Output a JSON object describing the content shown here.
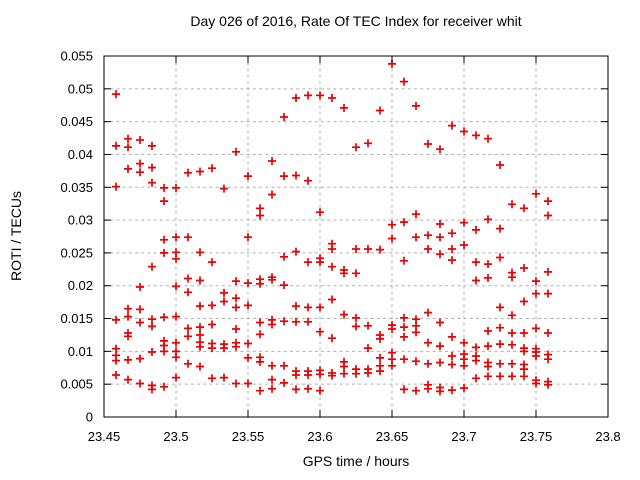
{
  "window": {
    "background": "#ffffff"
  },
  "chart_data": {
    "type": "scatter",
    "title": "Day 026 of 2016, Rate Of TEC Index for receiver whit",
    "xlabel": "GPS time / hours",
    "ylabel": "ROTI / TECUs",
    "xlim": [
      23.45,
      23.8
    ],
    "ylim": [
      0,
      0.055
    ],
    "xticks": [
      23.45,
      23.5,
      23.55,
      23.6,
      23.65,
      23.7,
      23.75,
      23.8
    ],
    "xtick_labels": [
      "23.45",
      "23.5",
      "23.55",
      "23.6",
      "23.65",
      "23.7",
      "23.75",
      "23.8"
    ],
    "yticks": [
      0,
      0.005,
      0.01,
      0.015,
      0.02,
      0.025,
      0.03,
      0.035,
      0.04,
      0.045,
      0.05,
      0.055
    ],
    "ytick_labels": [
      "0",
      "0.005",
      "0.01",
      "0.015",
      "0.02",
      "0.025",
      "0.03",
      "0.035",
      "0.04",
      "0.045",
      "0.05",
      "0.055"
    ],
    "grid": true,
    "legend": "none",
    "marker": "plus",
    "colors": {
      "marker": "#ee0000",
      "grid": "#b0b0b0",
      "axis": "#000000",
      "text": "#000000"
    },
    "points": [
      [
        23.4583,
        0.0492
      ],
      [
        23.4583,
        0.0413
      ],
      [
        23.4583,
        0.0351
      ],
      [
        23.4583,
        0.0148
      ],
      [
        23.4583,
        0.0104
      ],
      [
        23.4583,
        0.0094
      ],
      [
        23.4583,
        0.0086
      ],
      [
        23.4583,
        0.0064
      ],
      [
        23.4667,
        0.0424
      ],
      [
        23.4667,
        0.0411
      ],
      [
        23.4667,
        0.0378
      ],
      [
        23.4667,
        0.0165
      ],
      [
        23.4667,
        0.0153
      ],
      [
        23.4667,
        0.0128
      ],
      [
        23.4667,
        0.0123
      ],
      [
        23.4667,
        0.0087
      ],
      [
        23.4667,
        0.0057
      ],
      [
        23.475,
        0.0422
      ],
      [
        23.475,
        0.0386
      ],
      [
        23.475,
        0.0373
      ],
      [
        23.475,
        0.0198
      ],
      [
        23.475,
        0.0164
      ],
      [
        23.475,
        0.0144
      ],
      [
        23.475,
        0.0089
      ],
      [
        23.475,
        0.0051
      ],
      [
        23.4833,
        0.0413
      ],
      [
        23.4833,
        0.038
      ],
      [
        23.4833,
        0.0357
      ],
      [
        23.4833,
        0.0229
      ],
      [
        23.4833,
        0.0149
      ],
      [
        23.4833,
        0.0138
      ],
      [
        23.4833,
        0.0099
      ],
      [
        23.4833,
        0.0048
      ],
      [
        23.4833,
        0.0042
      ],
      [
        23.4917,
        0.0349
      ],
      [
        23.4917,
        0.0329
      ],
      [
        23.4917,
        0.027
      ],
      [
        23.4917,
        0.025
      ],
      [
        23.4917,
        0.0152
      ],
      [
        23.4917,
        0.0116
      ],
      [
        23.4917,
        0.0109
      ],
      [
        23.4917,
        0.01
      ],
      [
        23.4917,
        0.0046
      ],
      [
        23.5,
        0.0349
      ],
      [
        23.5,
        0.0274
      ],
      [
        23.5,
        0.0251
      ],
      [
        23.5,
        0.0241
      ],
      [
        23.5,
        0.0199
      ],
      [
        23.5,
        0.0153
      ],
      [
        23.5,
        0.0113
      ],
      [
        23.5,
        0.01
      ],
      [
        23.5,
        0.0091
      ],
      [
        23.5,
        0.006
      ],
      [
        23.5083,
        0.0372
      ],
      [
        23.5083,
        0.0274
      ],
      [
        23.5083,
        0.0211
      ],
      [
        23.5083,
        0.019
      ],
      [
        23.5083,
        0.0135
      ],
      [
        23.5083,
        0.0123
      ],
      [
        23.5083,
        0.0081
      ],
      [
        23.5167,
        0.0374
      ],
      [
        23.5167,
        0.0251
      ],
      [
        23.5167,
        0.0208
      ],
      [
        23.5167,
        0.0169
      ],
      [
        23.5167,
        0.0137
      ],
      [
        23.5167,
        0.0125
      ],
      [
        23.5167,
        0.0114
      ],
      [
        23.5167,
        0.0107
      ],
      [
        23.5167,
        0.0077
      ],
      [
        23.525,
        0.0379
      ],
      [
        23.525,
        0.0236
      ],
      [
        23.525,
        0.017
      ],
      [
        23.525,
        0.0141
      ],
      [
        23.525,
        0.0112
      ],
      [
        23.525,
        0.0105
      ],
      [
        23.525,
        0.0059
      ],
      [
        23.5333,
        0.0348
      ],
      [
        23.5333,
        0.0189
      ],
      [
        23.5333,
        0.0176
      ],
      [
        23.5333,
        0.0111
      ],
      [
        23.5333,
        0.0105
      ],
      [
        23.5333,
        0.006
      ],
      [
        23.5417,
        0.0404
      ],
      [
        23.5417,
        0.0207
      ],
      [
        23.5417,
        0.0181
      ],
      [
        23.5417,
        0.0167
      ],
      [
        23.5417,
        0.0134
      ],
      [
        23.5417,
        0.0113
      ],
      [
        23.5417,
        0.0107
      ],
      [
        23.5417,
        0.0051
      ],
      [
        23.55,
        0.0367
      ],
      [
        23.55,
        0.0274
      ],
      [
        23.55,
        0.0204
      ],
      [
        23.55,
        0.017
      ],
      [
        23.55,
        0.0112
      ],
      [
        23.55,
        0.009
      ],
      [
        23.55,
        0.0051
      ],
      [
        23.5583,
        0.0318
      ],
      [
        23.5583,
        0.0307
      ],
      [
        23.5583,
        0.021
      ],
      [
        23.5583,
        0.0203
      ],
      [
        23.5583,
        0.0144
      ],
      [
        23.5583,
        0.0126
      ],
      [
        23.5583,
        0.0091
      ],
      [
        23.5583,
        0.0084
      ],
      [
        23.5583,
        0.004
      ],
      [
        23.5667,
        0.039
      ],
      [
        23.5667,
        0.0339
      ],
      [
        23.5667,
        0.0213
      ],
      [
        23.5667,
        0.0209
      ],
      [
        23.5667,
        0.0148
      ],
      [
        23.5667,
        0.0141
      ],
      [
        23.5667,
        0.0078
      ],
      [
        23.5667,
        0.0057
      ],
      [
        23.5667,
        0.0043
      ],
      [
        23.575,
        0.0457
      ],
      [
        23.575,
        0.0367
      ],
      [
        23.575,
        0.0244
      ],
      [
        23.575,
        0.0201
      ],
      [
        23.575,
        0.0146
      ],
      [
        23.575,
        0.0078
      ],
      [
        23.575,
        0.0052
      ],
      [
        23.5833,
        0.0486
      ],
      [
        23.5833,
        0.0368
      ],
      [
        23.5833,
        0.0252
      ],
      [
        23.5833,
        0.0169
      ],
      [
        23.5833,
        0.0145
      ],
      [
        23.5833,
        0.007
      ],
      [
        23.5833,
        0.0064
      ],
      [
        23.5833,
        0.0042
      ],
      [
        23.5917,
        0.049
      ],
      [
        23.5917,
        0.036
      ],
      [
        23.5917,
        0.0236
      ],
      [
        23.5917,
        0.0167
      ],
      [
        23.5917,
        0.0145
      ],
      [
        23.5917,
        0.007
      ],
      [
        23.5917,
        0.0064
      ],
      [
        23.5917,
        0.0043
      ],
      [
        23.6,
        0.049
      ],
      [
        23.6,
        0.0312
      ],
      [
        23.6,
        0.0242
      ],
      [
        23.6,
        0.0236
      ],
      [
        23.6,
        0.0167
      ],
      [
        23.6,
        0.013
      ],
      [
        23.6,
        0.0071
      ],
      [
        23.6,
        0.0065
      ],
      [
        23.6,
        0.004
      ],
      [
        23.6083,
        0.0486
      ],
      [
        23.6083,
        0.0264
      ],
      [
        23.6083,
        0.0256
      ],
      [
        23.6083,
        0.0229
      ],
      [
        23.6083,
        0.0179
      ],
      [
        23.6083,
        0.012
      ],
      [
        23.6083,
        0.0067
      ],
      [
        23.6083,
        0.0063
      ],
      [
        23.6167,
        0.0471
      ],
      [
        23.6167,
        0.0224
      ],
      [
        23.6167,
        0.0219
      ],
      [
        23.6167,
        0.0156
      ],
      [
        23.6167,
        0.0084
      ],
      [
        23.6167,
        0.0077
      ],
      [
        23.6167,
        0.0066
      ],
      [
        23.625,
        0.0411
      ],
      [
        23.625,
        0.0256
      ],
      [
        23.625,
        0.0219
      ],
      [
        23.625,
        0.0151
      ],
      [
        23.625,
        0.0138
      ],
      [
        23.625,
        0.0073
      ],
      [
        23.625,
        0.0066
      ],
      [
        23.6333,
        0.0417
      ],
      [
        23.6333,
        0.0256
      ],
      [
        23.6333,
        0.0139
      ],
      [
        23.6333,
        0.0105
      ],
      [
        23.6333,
        0.0073
      ],
      [
        23.6333,
        0.0067
      ],
      [
        23.6417,
        0.0467
      ],
      [
        23.6417,
        0.0255
      ],
      [
        23.6417,
        0.0125
      ],
      [
        23.6417,
        0.0119
      ],
      [
        23.6417,
        0.009
      ],
      [
        23.6417,
        0.0078
      ],
      [
        23.6417,
        0.007
      ],
      [
        23.65,
        0.0538
      ],
      [
        23.65,
        0.0293
      ],
      [
        23.65,
        0.0272
      ],
      [
        23.65,
        0.014
      ],
      [
        23.65,
        0.0134
      ],
      [
        23.65,
        0.0098
      ],
      [
        23.65,
        0.0088
      ],
      [
        23.65,
        0.0078
      ],
      [
        23.6583,
        0.0511
      ],
      [
        23.6583,
        0.0297
      ],
      [
        23.6583,
        0.0238
      ],
      [
        23.6583,
        0.0151
      ],
      [
        23.6583,
        0.0137
      ],
      [
        23.6583,
        0.0122
      ],
      [
        23.6583,
        0.0088
      ],
      [
        23.6583,
        0.0042
      ],
      [
        23.6667,
        0.0474
      ],
      [
        23.6667,
        0.0309
      ],
      [
        23.6667,
        0.0274
      ],
      [
        23.6667,
        0.0149
      ],
      [
        23.6667,
        0.0139
      ],
      [
        23.6667,
        0.0129
      ],
      [
        23.6667,
        0.0085
      ],
      [
        23.6667,
        0.004
      ],
      [
        23.675,
        0.0416
      ],
      [
        23.675,
        0.0277
      ],
      [
        23.675,
        0.0256
      ],
      [
        23.675,
        0.0159
      ],
      [
        23.675,
        0.0113
      ],
      [
        23.675,
        0.0081
      ],
      [
        23.675,
        0.0049
      ],
      [
        23.675,
        0.0043
      ],
      [
        23.6833,
        0.0408
      ],
      [
        23.6833,
        0.0294
      ],
      [
        23.6833,
        0.0274
      ],
      [
        23.6833,
        0.0248
      ],
      [
        23.6833,
        0.0144
      ],
      [
        23.6833,
        0.0108
      ],
      [
        23.6833,
        0.0083
      ],
      [
        23.6833,
        0.0045
      ],
      [
        23.6833,
        0.0039
      ],
      [
        23.6917,
        0.0444
      ],
      [
        23.6917,
        0.028
      ],
      [
        23.6917,
        0.0256
      ],
      [
        23.6917,
        0.0239
      ],
      [
        23.6917,
        0.0122
      ],
      [
        23.6917,
        0.0093
      ],
      [
        23.6917,
        0.008
      ],
      [
        23.6917,
        0.0041
      ],
      [
        23.7,
        0.0435
      ],
      [
        23.7,
        0.0296
      ],
      [
        23.7,
        0.0262
      ],
      [
        23.7,
        0.0113
      ],
      [
        23.7,
        0.0096
      ],
      [
        23.7,
        0.0088
      ],
      [
        23.7,
        0.0078
      ],
      [
        23.7,
        0.0044
      ],
      [
        23.7083,
        0.0429
      ],
      [
        23.7083,
        0.0285
      ],
      [
        23.7083,
        0.0236
      ],
      [
        23.7083,
        0.0208
      ],
      [
        23.7083,
        0.0106
      ],
      [
        23.7083,
        0.0093
      ],
      [
        23.7083,
        0.0086
      ],
      [
        23.7083,
        0.0059
      ],
      [
        23.7167,
        0.0424
      ],
      [
        23.7167,
        0.0301
      ],
      [
        23.7167,
        0.0233
      ],
      [
        23.7167,
        0.0212
      ],
      [
        23.7167,
        0.0131
      ],
      [
        23.7167,
        0.0108
      ],
      [
        23.7167,
        0.0083
      ],
      [
        23.7167,
        0.0077
      ],
      [
        23.7167,
        0.0062
      ],
      [
        23.725,
        0.0384
      ],
      [
        23.725,
        0.0287
      ],
      [
        23.725,
        0.0243
      ],
      [
        23.725,
        0.0167
      ],
      [
        23.725,
        0.0136
      ],
      [
        23.725,
        0.0111
      ],
      [
        23.725,
        0.0081
      ],
      [
        23.725,
        0.0062
      ],
      [
        23.7333,
        0.0324
      ],
      [
        23.7333,
        0.022
      ],
      [
        23.7333,
        0.0213
      ],
      [
        23.7333,
        0.0155
      ],
      [
        23.7333,
        0.0128
      ],
      [
        23.7333,
        0.011
      ],
      [
        23.7333,
        0.0081
      ],
      [
        23.7333,
        0.0062
      ],
      [
        23.7417,
        0.0318
      ],
      [
        23.7417,
        0.0227
      ],
      [
        23.7417,
        0.0176
      ],
      [
        23.7417,
        0.0128
      ],
      [
        23.7417,
        0.0105
      ],
      [
        23.7417,
        0.01
      ],
      [
        23.7417,
        0.008
      ],
      [
        23.7417,
        0.0073
      ],
      [
        23.7417,
        0.0062
      ],
      [
        23.75,
        0.034
      ],
      [
        23.75,
        0.0207
      ],
      [
        23.75,
        0.0188
      ],
      [
        23.75,
        0.0135
      ],
      [
        23.75,
        0.0104
      ],
      [
        23.75,
        0.0099
      ],
      [
        23.75,
        0.0093
      ],
      [
        23.75,
        0.0056
      ],
      [
        23.75,
        0.0051
      ],
      [
        23.7583,
        0.0329
      ],
      [
        23.7583,
        0.0307
      ],
      [
        23.7583,
        0.0221
      ],
      [
        23.7583,
        0.0188
      ],
      [
        23.7583,
        0.0128
      ],
      [
        23.7583,
        0.0095
      ],
      [
        23.7583,
        0.0088
      ],
      [
        23.7583,
        0.0054
      ],
      [
        23.7583,
        0.0049
      ]
    ]
  }
}
